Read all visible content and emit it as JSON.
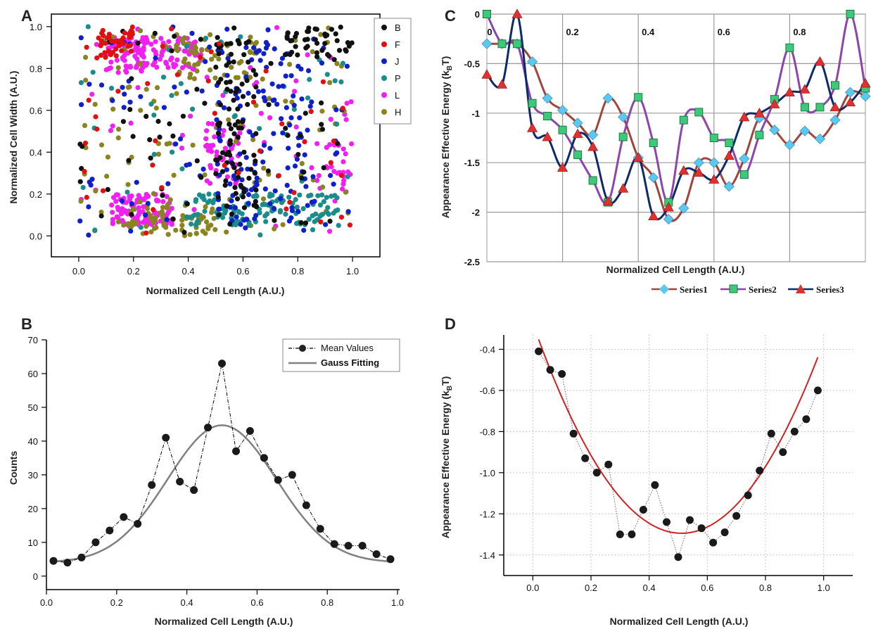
{
  "panels": {
    "a": "A",
    "b": "B",
    "c": "C",
    "d": "D"
  },
  "colors": {
    "B": "#111111",
    "F": "#e01010",
    "J": "#1020c8",
    "P": "#1a8c8c",
    "L": "#f020f0",
    "H": "#8a8420",
    "series1": "#5bc8f0",
    "series2": "#8e44ad",
    "series3": "#e03030",
    "series1_line": "#a0443c",
    "series3_line": "#0d2a6b",
    "fit_b": "#808080",
    "fit_d": "#d42020"
  },
  "chart_data": [
    {
      "id": "A",
      "type": "scatter",
      "xlabel": "Normalized Cell Length (A.U.)",
      "ylabel": "Normalized Cell Width (A.U.)",
      "xlim": [
        -0.1,
        1.1
      ],
      "ylim": [
        -0.1,
        1.06
      ],
      "xticks": [
        "0.0",
        "0.2",
        "0.4",
        "0.6",
        "0.8",
        "1.0"
      ],
      "xtick_values": [
        0,
        0.2,
        0.4,
        0.6,
        0.8,
        1.0
      ],
      "yticks": [
        "0.0",
        "0.2",
        "0.4",
        "0.6",
        "0.8",
        "1.0"
      ],
      "ytick_values": [
        0,
        0.2,
        0.4,
        0.6,
        0.8,
        1.0
      ],
      "legend": [
        "B",
        "F",
        "J",
        "P",
        "L",
        "H"
      ],
      "legend_position": "top-right",
      "clusters": [
        {
          "series": "L",
          "x": [
            0.1,
            0.45
          ],
          "y": [
            0.78,
            0.95
          ],
          "n": 120
        },
        {
          "series": "L",
          "x": [
            0.12,
            0.35
          ],
          "y": [
            0.05,
            0.2
          ],
          "n": 100
        },
        {
          "series": "L",
          "x": [
            0.45,
            0.6
          ],
          "y": [
            0.25,
            0.55
          ],
          "n": 45
        },
        {
          "series": "L",
          "x": [
            0.85,
            1.0
          ],
          "y": [
            0.2,
            0.45
          ],
          "n": 25
        },
        {
          "series": "L",
          "x": [
            0.0,
            1.0
          ],
          "y": [
            0.0,
            1.0
          ],
          "n": 50
        },
        {
          "series": "H",
          "x": [
            0.15,
            0.5
          ],
          "y": [
            0.0,
            0.15
          ],
          "n": 60
        },
        {
          "series": "H",
          "x": [
            0.35,
            0.65
          ],
          "y": [
            0.75,
            0.95
          ],
          "n": 50
        },
        {
          "series": "H",
          "x": [
            0.0,
            1.0
          ],
          "y": [
            0.0,
            1.0
          ],
          "n": 110
        },
        {
          "series": "P",
          "x": [
            0.4,
            0.95
          ],
          "y": [
            0.05,
            0.2
          ],
          "n": 120
        },
        {
          "series": "P",
          "x": [
            0.0,
            1.0
          ],
          "y": [
            0.0,
            1.0
          ],
          "n": 50
        },
        {
          "series": "J",
          "x": [
            0.5,
            0.85
          ],
          "y": [
            0.05,
            0.9
          ],
          "n": 100
        },
        {
          "series": "J",
          "x": [
            0.0,
            1.0
          ],
          "y": [
            0.0,
            1.0
          ],
          "n": 100
        },
        {
          "series": "B",
          "x": [
            0.5,
            0.65
          ],
          "y": [
            0.1,
            0.95
          ],
          "n": 90
        },
        {
          "series": "B",
          "x": [
            0.75,
            1.0
          ],
          "y": [
            0.85,
            1.0
          ],
          "n": 40
        },
        {
          "series": "B",
          "x": [
            0.0,
            1.0
          ],
          "y": [
            0.0,
            1.0
          ],
          "n": 70
        },
        {
          "series": "F",
          "x": [
            0.05,
            0.2
          ],
          "y": [
            0.85,
            1.0
          ],
          "n": 40
        },
        {
          "series": "F",
          "x": [
            0.0,
            1.0
          ],
          "y": [
            0.0,
            1.0
          ],
          "n": 45
        }
      ]
    },
    {
      "id": "B",
      "type": "line",
      "xlabel": "Normalized Cell Length (A.U.)",
      "ylabel": "Counts",
      "xlim": [
        0.0,
        1.0
      ],
      "ylim": [
        -4,
        70
      ],
      "xticks": [
        "0.0",
        "0.2",
        "0.4",
        "0.6",
        "0.8",
        "1.0"
      ],
      "xtick_values": [
        0,
        0.2,
        0.4,
        0.6,
        0.8,
        1.0
      ],
      "yticks": [
        "0",
        "10",
        "20",
        "30",
        "40",
        "50",
        "60",
        "70"
      ],
      "ytick_values": [
        0,
        10,
        20,
        30,
        40,
        50,
        60,
        70
      ],
      "legend_position": "top-right",
      "series": [
        {
          "name": "Mean Values",
          "x": [
            0.02,
            0.06,
            0.1,
            0.14,
            0.18,
            0.22,
            0.26,
            0.3,
            0.34,
            0.38,
            0.42,
            0.46,
            0.5,
            0.54,
            0.58,
            0.62,
            0.66,
            0.7,
            0.74,
            0.78,
            0.82,
            0.86,
            0.9,
            0.94,
            0.98
          ],
          "y": [
            4.5,
            4,
            5.5,
            10,
            13.5,
            17.5,
            15.5,
            27,
            41,
            28,
            25.5,
            44,
            63,
            37,
            43,
            35,
            28.5,
            30,
            21,
            14,
            9.5,
            9,
            9,
            6.5,
            5
          ]
        },
        {
          "name": "Gauss Fitting",
          "fit": {
            "y0": 4,
            "A": 40.7,
            "xc": 0.5,
            "w": 0.155
          }
        }
      ]
    },
    {
      "id": "C",
      "type": "line",
      "xlabel": "Normalized Cell Length (A.U.)",
      "ylabel": "Appearance Effective Energy (kBT)",
      "ylabel_parts": [
        "Appearance Effective Energy (k",
        "B",
        "T)"
      ],
      "xlim": [
        0.0,
        1.0
      ],
      "ylim": [
        -2.5,
        0
      ],
      "xticks": [
        "0",
        "0.2",
        "0.4",
        "0.6",
        "0.8"
      ],
      "xtick_values": [
        0,
        0.2,
        0.4,
        0.6,
        0.8
      ],
      "yticks": [
        "0",
        "-0.5",
        "-1",
        "-1.5",
        "-2",
        "-2.5"
      ],
      "ytick_values": [
        0,
        -0.5,
        -1,
        -1.5,
        -2,
        -2.5
      ],
      "grid": true,
      "legend_position": "bottom",
      "x": [
        0.0,
        0.04,
        0.08,
        0.12,
        0.16,
        0.2,
        0.24,
        0.28,
        0.32,
        0.36,
        0.4,
        0.44,
        0.48,
        0.52,
        0.56,
        0.6,
        0.64,
        0.68,
        0.72,
        0.76,
        0.8,
        0.84,
        0.88,
        0.92,
        0.96,
        1.0
      ],
      "series": [
        {
          "name": "Series1",
          "y": [
            -0.3,
            -0.3,
            -0.3,
            -0.48,
            -0.85,
            -0.97,
            -1.1,
            -1.22,
            -0.85,
            -1.04,
            -1.45,
            -1.65,
            -2.07,
            -1.96,
            -1.5,
            -1.5,
            -1.74,
            -1.46,
            -1.05,
            -1.17,
            -1.32,
            -1.18,
            -1.26,
            -1.07,
            -0.79,
            -0.83
          ]
        },
        {
          "name": "Series2",
          "y": [
            0.0,
            -0.3,
            -0.3,
            -0.9,
            -1.03,
            -1.17,
            -1.42,
            -1.68,
            -1.9,
            -1.24,
            -0.84,
            -1.3,
            -1.9,
            -1.07,
            -0.99,
            -1.25,
            -1.3,
            -1.62,
            -1.22,
            -0.86,
            -0.34,
            -0.94,
            -0.94,
            -0.72,
            0.0,
            -0.75
          ]
        },
        {
          "name": "Series3",
          "y": [
            -0.61,
            -0.71,
            0.0,
            -1.15,
            -1.24,
            -1.55,
            -1.21,
            -1.34,
            -1.89,
            -1.76,
            -1.45,
            -2.04,
            -1.95,
            -1.58,
            -1.6,
            -1.67,
            -1.43,
            -1.04,
            -1.0,
            -0.91,
            -0.79,
            -0.76,
            -0.48,
            -0.94,
            -0.89,
            -0.7
          ]
        }
      ]
    },
    {
      "id": "D",
      "type": "scatter",
      "xlabel": "Normalized Cell Length (A.U.)",
      "ylabel": "Appearance Effective Energy (kBT)",
      "ylabel_parts": [
        "Appearance Effective Energy (k",
        "B",
        "T)"
      ],
      "xlim": [
        -0.1,
        1.1
      ],
      "ylim": [
        -1.5,
        -0.33
      ],
      "xticks": [
        "0.0",
        "0.2",
        "0.4",
        "0.6",
        "0.8",
        "1.0"
      ],
      "xtick_values": [
        0,
        0.2,
        0.4,
        0.6,
        0.8,
        1.0
      ],
      "yticks": [
        "-0.4",
        "-0.6",
        "-0.8",
        "-1.0",
        "-1.2",
        "-1.4"
      ],
      "ytick_values": [
        -0.4,
        -0.6,
        -0.8,
        -1.0,
        -1.2,
        -1.4
      ],
      "grid": true,
      "series": [
        {
          "name": "",
          "x": [
            0.02,
            0.06,
            0.1,
            0.14,
            0.18,
            0.22,
            0.26,
            0.3,
            0.34,
            0.38,
            0.42,
            0.46,
            0.5,
            0.54,
            0.58,
            0.62,
            0.66,
            0.7,
            0.74,
            0.78,
            0.82,
            0.86,
            0.9,
            0.94,
            0.98
          ],
          "y": [
            -0.41,
            -0.5,
            -0.52,
            -0.81,
            -0.93,
            -1.0,
            -0.96,
            -1.3,
            -1.3,
            -1.18,
            -1.06,
            -1.24,
            -1.41,
            -1.23,
            -1.27,
            -1.34,
            -1.29,
            -1.21,
            -1.11,
            -0.99,
            -0.81,
            -0.9,
            -0.8,
            -0.74,
            -0.6
          ]
        },
        {
          "name": "",
          "fit": {
            "a": 3.9,
            "b": -3.99,
            "c": -0.274
          }
        }
      ]
    }
  ],
  "legend_b": {
    "item1": "Mean Values",
    "item2": "Gauss Fitting"
  },
  "legend_c": {
    "item1": "Series1",
    "item2": "Series2",
    "item3": "Series3"
  }
}
